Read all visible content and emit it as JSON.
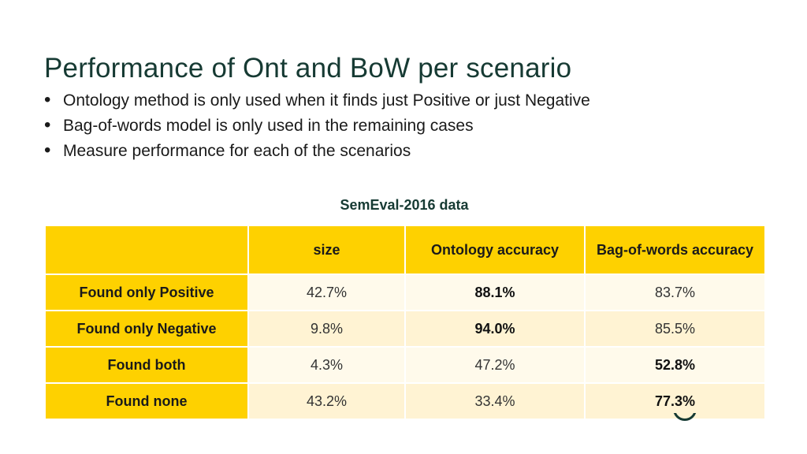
{
  "title": "Performance of Ont and BoW per scenario",
  "bullets": [
    "Ontology method is only used when it finds just Positive or just Negative",
    "Bag-of-words model is only used in the remaining cases",
    "Measure performance for each of the scenarios"
  ],
  "table": {
    "caption": "SemEval-2016 data",
    "headers": [
      "",
      "size",
      "Ontology accuracy",
      "Bag-of-words accuracy"
    ],
    "rows": [
      {
        "scenario": "Found only Positive",
        "size": "42.7%",
        "ontology": "88.1%",
        "bow": "83.7%"
      },
      {
        "scenario": "Found only Negative",
        "size": "9.8%",
        "ontology": "94.0%",
        "bow": "85.5%"
      },
      {
        "scenario": "Found both",
        "size": "4.3%",
        "ontology": "47.2%",
        "bow": "52.8%"
      },
      {
        "scenario": "Found none",
        "size": "43.2%",
        "ontology": "33.4%",
        "bow": "77.3%"
      }
    ]
  },
  "colors": {
    "header_fill": "#fed100",
    "row_odd": "#fffaeb",
    "row_even": "#fff3d3",
    "title": "#163a33"
  }
}
